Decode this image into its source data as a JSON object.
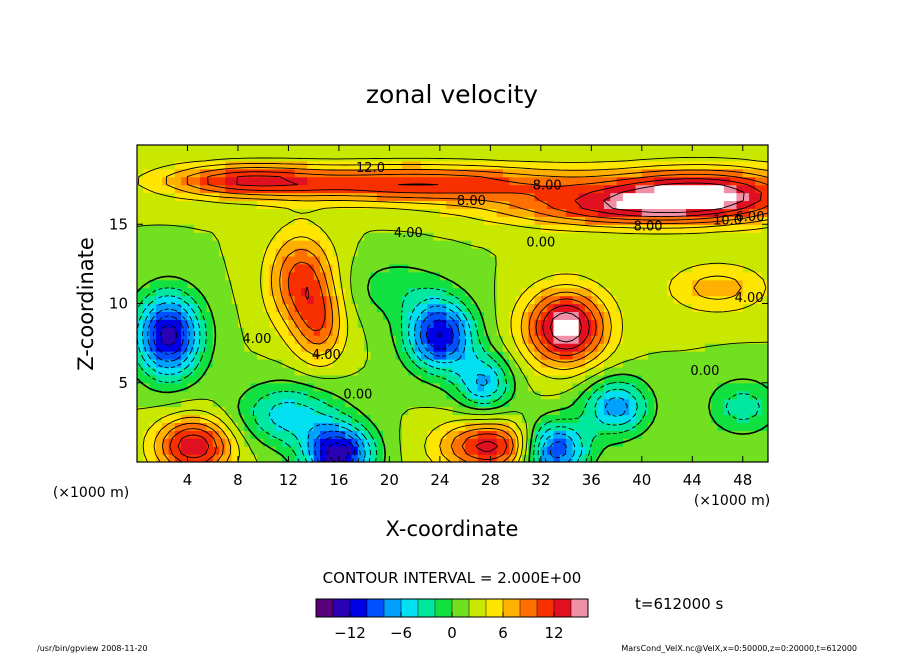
{
  "chart_data": {
    "type": "heatmap",
    "title": "zonal velocity",
    "xlabel": "X-coordinate",
    "ylabel": "Z-coordinate",
    "x_unit_label": "(×1000 m)",
    "y_unit_label": "(×1000 m)",
    "xlim": [
      0,
      50
    ],
    "ylim": [
      0,
      20
    ],
    "x_ticks": [
      4,
      8,
      12,
      16,
      20,
      24,
      28,
      32,
      36,
      40,
      44,
      48
    ],
    "y_ticks": [
      5,
      10,
      15
    ],
    "contour_interval_label": "CONTOUR INTERVAL = 2.000E+00",
    "time_label": "t=612000 s",
    "colorbar": {
      "range": [
        -16,
        16
      ],
      "ticks": [
        -12,
        -6,
        0,
        6,
        12
      ],
      "colors": [
        "#5a007a",
        "#2a00b4",
        "#0000e6",
        "#0050ff",
        "#00a0ff",
        "#00e0f0",
        "#00e8a0",
        "#10e040",
        "#70e020",
        "#c8e800",
        "#ffe600",
        "#ffb000",
        "#ff7000",
        "#f83000",
        "#e01020",
        "#f090a8"
      ]
    },
    "contour_labels": [
      {
        "text": "12.0",
        "x": 18.5,
        "y": 18.3
      },
      {
        "text": "8.00",
        "x": 32.5,
        "y": 17.2
      },
      {
        "text": "8.00",
        "x": 26.5,
        "y": 16.2
      },
      {
        "text": "8.00",
        "x": 40.5,
        "y": 14.6
      },
      {
        "text": "10.0",
        "x": 46.8,
        "y": 15.0
      },
      {
        "text": "6.00",
        "x": 52.0,
        "y": 15.2
      },
      {
        "text": "4.00",
        "x": 21.5,
        "y": 14.2
      },
      {
        "text": "0.00",
        "x": 32.0,
        "y": 13.6
      },
      {
        "text": "4.00",
        "x": 48.5,
        "y": 10.1
      },
      {
        "text": "4.00",
        "x": 9.5,
        "y": 7.5
      },
      {
        "text": "4.00",
        "x": 15.0,
        "y": 6.5
      },
      {
        "text": "0.00",
        "x": 17.5,
        "y": 4.0
      },
      {
        "text": "0.00",
        "x": 45.0,
        "y": 5.5
      }
    ],
    "features": [
      {
        "x": 22.0,
        "y": 17.6,
        "value": 10,
        "sx": 14,
        "sy": 1.2
      },
      {
        "x": 45.0,
        "y": 17.0,
        "value": 12,
        "sx": 8,
        "sy": 1.6
      },
      {
        "x": 8.0,
        "y": 17.8,
        "value": 7,
        "sx": 6,
        "sy": 1.0
      },
      {
        "x": 38.0,
        "y": 16.0,
        "value": 8,
        "sx": 10,
        "sy": 1.2
      },
      {
        "x": 13.0,
        "y": 11.5,
        "value": 9,
        "sx": 2.6,
        "sy": 3.0
      },
      {
        "x": 14.5,
        "y": 8.5,
        "value": 6,
        "sx": 2.0,
        "sy": 2.5
      },
      {
        "x": 34.0,
        "y": 8.5,
        "value": 14,
        "sx": 3.2,
        "sy": 2.4
      },
      {
        "x": 46.0,
        "y": 11.0,
        "value": 5,
        "sx": 4.0,
        "sy": 1.6
      },
      {
        "x": 2.5,
        "y": 8.0,
        "value": -15,
        "sx": 2.6,
        "sy": 2.6
      },
      {
        "x": 24.0,
        "y": 8.0,
        "value": -14,
        "sx": 2.6,
        "sy": 2.2
      },
      {
        "x": 12.0,
        "y": 3.0,
        "value": -7,
        "sx": 4.0,
        "sy": 2.0
      },
      {
        "x": 16.0,
        "y": 0.5,
        "value": -15,
        "sx": 2.6,
        "sy": 1.8
      },
      {
        "x": 27.5,
        "y": 5.0,
        "value": -8,
        "sx": 2.2,
        "sy": 1.8
      },
      {
        "x": 33.0,
        "y": 0.8,
        "value": -13,
        "sx": 2.6,
        "sy": 1.8
      },
      {
        "x": 38.0,
        "y": 3.5,
        "value": -9,
        "sx": 2.6,
        "sy": 1.8
      },
      {
        "x": 48.0,
        "y": 3.5,
        "value": -5,
        "sx": 2.8,
        "sy": 1.8
      },
      {
        "x": 4.5,
        "y": 1.0,
        "value": 12,
        "sx": 3.0,
        "sy": 1.8
      },
      {
        "x": 28.0,
        "y": 1.0,
        "value": 11,
        "sx": 4.0,
        "sy": 1.6
      },
      {
        "x": 20.5,
        "y": 11.0,
        "value": -3,
        "sx": 4.0,
        "sy": 2.0
      }
    ]
  },
  "footer": {
    "program": "/usr/bin/gpview  2008-11-20",
    "source": "MarsCond_VelX.nc@VelX,x=0:50000,z=0:20000,t=612000"
  }
}
